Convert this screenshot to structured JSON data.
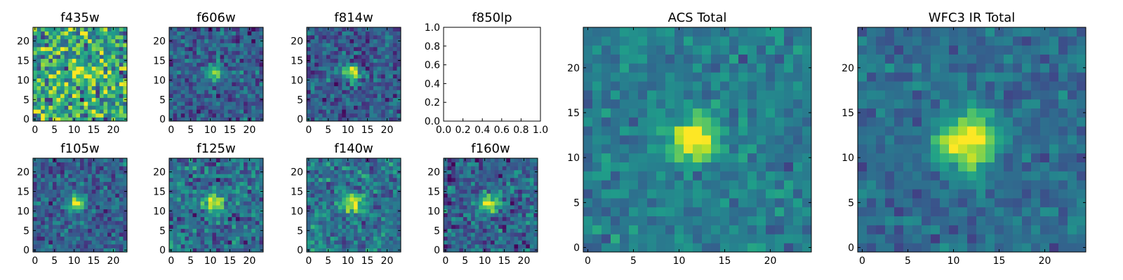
{
  "chart_data": {
    "type": "heatmap",
    "colormap": "viridis",
    "panels": [
      {
        "key": "f435w",
        "title": "f435w",
        "image_size": [
          24,
          24
        ],
        "xticks": [
          "0",
          "5",
          "10",
          "15",
          "20"
        ],
        "yticks": [
          "0",
          "5",
          "10",
          "15",
          "20"
        ],
        "source_center": [
          11,
          12
        ],
        "peak": 0.55,
        "noise": 0.42,
        "background": 0.6,
        "sigma": 1.2
      },
      {
        "key": "f606w",
        "title": "f606w",
        "image_size": [
          24,
          24
        ],
        "xticks": [
          "0",
          "5",
          "10",
          "15",
          "20"
        ],
        "yticks": [
          "0",
          "5",
          "10",
          "15",
          "20"
        ],
        "source_center": [
          11,
          12
        ],
        "peak": 0.65,
        "noise": 0.22,
        "background": 0.28,
        "sigma": 1.3
      },
      {
        "key": "f814w",
        "title": "f814w",
        "image_size": [
          24,
          24
        ],
        "xticks": [
          "0",
          "5",
          "10",
          "15",
          "20"
        ],
        "yticks": [
          "0",
          "5",
          "10",
          "15",
          "20"
        ],
        "source_center": [
          11,
          12
        ],
        "peak": 0.7,
        "noise": 0.22,
        "background": 0.28,
        "sigma": 1.4
      },
      {
        "key": "f850lp",
        "title": "f850lp",
        "empty": true,
        "xticks": [
          "0.0",
          "0.2",
          "0.4",
          "0.6",
          "0.8",
          "1.0"
        ],
        "yticks": [
          "0.0",
          "0.2",
          "0.4",
          "0.6",
          "0.8",
          "1.0"
        ],
        "xlim": [
          0,
          1
        ],
        "ylim": [
          0,
          1
        ]
      },
      {
        "key": "f105w",
        "title": "f105w",
        "image_size": [
          24,
          24
        ],
        "xticks": [
          "0",
          "5",
          "10",
          "15",
          "20"
        ],
        "yticks": [
          "0",
          "5",
          "10",
          "15",
          "20"
        ],
        "source_center": [
          11,
          12
        ],
        "peak": 0.65,
        "noise": 0.2,
        "background": 0.3,
        "sigma": 1.6
      },
      {
        "key": "f125w",
        "title": "f125w",
        "image_size": [
          24,
          24
        ],
        "xticks": [
          "0",
          "5",
          "10",
          "15",
          "20"
        ],
        "yticks": [
          "0",
          "5",
          "10",
          "15",
          "20"
        ],
        "source_center": [
          11,
          12
        ],
        "peak": 0.6,
        "noise": 0.26,
        "background": 0.35,
        "sigma": 1.8
      },
      {
        "key": "f140w",
        "title": "f140w",
        "image_size": [
          24,
          24
        ],
        "xticks": [
          "0",
          "5",
          "10",
          "15",
          "20"
        ],
        "yticks": [
          "0",
          "5",
          "10",
          "15",
          "20"
        ],
        "source_center": [
          11,
          12
        ],
        "peak": 0.6,
        "noise": 0.24,
        "background": 0.38,
        "sigma": 1.8
      },
      {
        "key": "f160w",
        "title": "f160w",
        "image_size": [
          24,
          24
        ],
        "xticks": [
          "0",
          "5",
          "10",
          "15",
          "20"
        ],
        "yticks": [
          "0",
          "5",
          "10",
          "15",
          "20"
        ],
        "source_center": [
          11,
          12
        ],
        "peak": 0.65,
        "noise": 0.26,
        "background": 0.3,
        "sigma": 1.8
      },
      {
        "key": "acs_total",
        "title": "ACS Total",
        "image_size": [
          25,
          25
        ],
        "xticks": [
          "0",
          "5",
          "10",
          "15",
          "20"
        ],
        "yticks": [
          "0",
          "5",
          "10",
          "15",
          "20"
        ],
        "source_center": [
          11.5,
          12
        ],
        "peak": 0.75,
        "noise": 0.16,
        "background": 0.42,
        "sigma": 1.6
      },
      {
        "key": "wfc3_ir_total",
        "title": "WFC3 IR Total",
        "image_size": [
          25,
          25
        ],
        "xticks": [
          "0",
          "5",
          "10",
          "15",
          "20"
        ],
        "yticks": [
          "0",
          "5",
          "10",
          "15",
          "20"
        ],
        "source_center": [
          11.5,
          12
        ],
        "peak": 0.72,
        "noise": 0.14,
        "background": 0.35,
        "sigma": 2.2
      }
    ]
  }
}
